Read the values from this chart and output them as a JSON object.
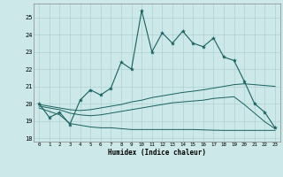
{
  "xlabel": "Humidex (Indice chaleur)",
  "bg_color": "#cce8e8",
  "grid_color": "#b0d0d0",
  "line_color": "#1a6060",
  "xlim": [
    -0.5,
    23.5
  ],
  "ylim": [
    17.8,
    25.8
  ],
  "yticks": [
    18,
    19,
    20,
    21,
    22,
    23,
    24,
    25
  ],
  "xticks": [
    0,
    1,
    2,
    3,
    4,
    5,
    6,
    7,
    8,
    9,
    10,
    11,
    12,
    13,
    14,
    15,
    16,
    17,
    18,
    19,
    20,
    21,
    22,
    23
  ],
  "main_x": [
    0,
    1,
    2,
    3,
    4,
    5,
    6,
    7,
    8,
    9,
    10,
    11,
    12,
    13,
    14,
    15,
    16,
    17,
    18,
    19,
    20,
    21,
    22,
    23
  ],
  "main_y": [
    20.0,
    19.2,
    19.5,
    18.8,
    20.2,
    20.8,
    20.5,
    20.9,
    22.4,
    22.0,
    25.4,
    23.0,
    24.1,
    23.5,
    24.2,
    23.5,
    23.3,
    23.8,
    22.7,
    22.5,
    21.3,
    20.0,
    19.5,
    18.6
  ],
  "line2_x": [
    0,
    1,
    2,
    3,
    4,
    5,
    6,
    7,
    8,
    9,
    10,
    11,
    12,
    13,
    14,
    15,
    16,
    17,
    18,
    19,
    20,
    21,
    22,
    23
  ],
  "line2_y": [
    19.95,
    19.85,
    19.75,
    19.65,
    19.6,
    19.65,
    19.75,
    19.85,
    19.95,
    20.1,
    20.2,
    20.35,
    20.45,
    20.55,
    20.65,
    20.72,
    20.8,
    20.9,
    21.0,
    21.1,
    21.15,
    21.1,
    21.05,
    21.0
  ],
  "line3_x": [
    0,
    1,
    2,
    3,
    4,
    5,
    6,
    7,
    8,
    9,
    10,
    11,
    12,
    13,
    14,
    15,
    16,
    17,
    18,
    19,
    20,
    21,
    22,
    23
  ],
  "line3_y": [
    19.85,
    19.75,
    19.65,
    19.45,
    19.35,
    19.3,
    19.35,
    19.45,
    19.55,
    19.65,
    19.75,
    19.85,
    19.95,
    20.05,
    20.1,
    20.15,
    20.2,
    20.3,
    20.35,
    20.4,
    19.95,
    19.45,
    18.95,
    18.55
  ],
  "line4_x": [
    0,
    1,
    2,
    3,
    4,
    5,
    6,
    7,
    8,
    9,
    10,
    11,
    12,
    13,
    14,
    15,
    16,
    17,
    18,
    19,
    20,
    21,
    22,
    23
  ],
  "line4_y": [
    19.75,
    19.55,
    19.35,
    18.85,
    18.75,
    18.65,
    18.6,
    18.6,
    18.55,
    18.5,
    18.5,
    18.5,
    18.5,
    18.5,
    18.5,
    18.5,
    18.48,
    18.46,
    18.45,
    18.45,
    18.45,
    18.45,
    18.45,
    18.45
  ]
}
